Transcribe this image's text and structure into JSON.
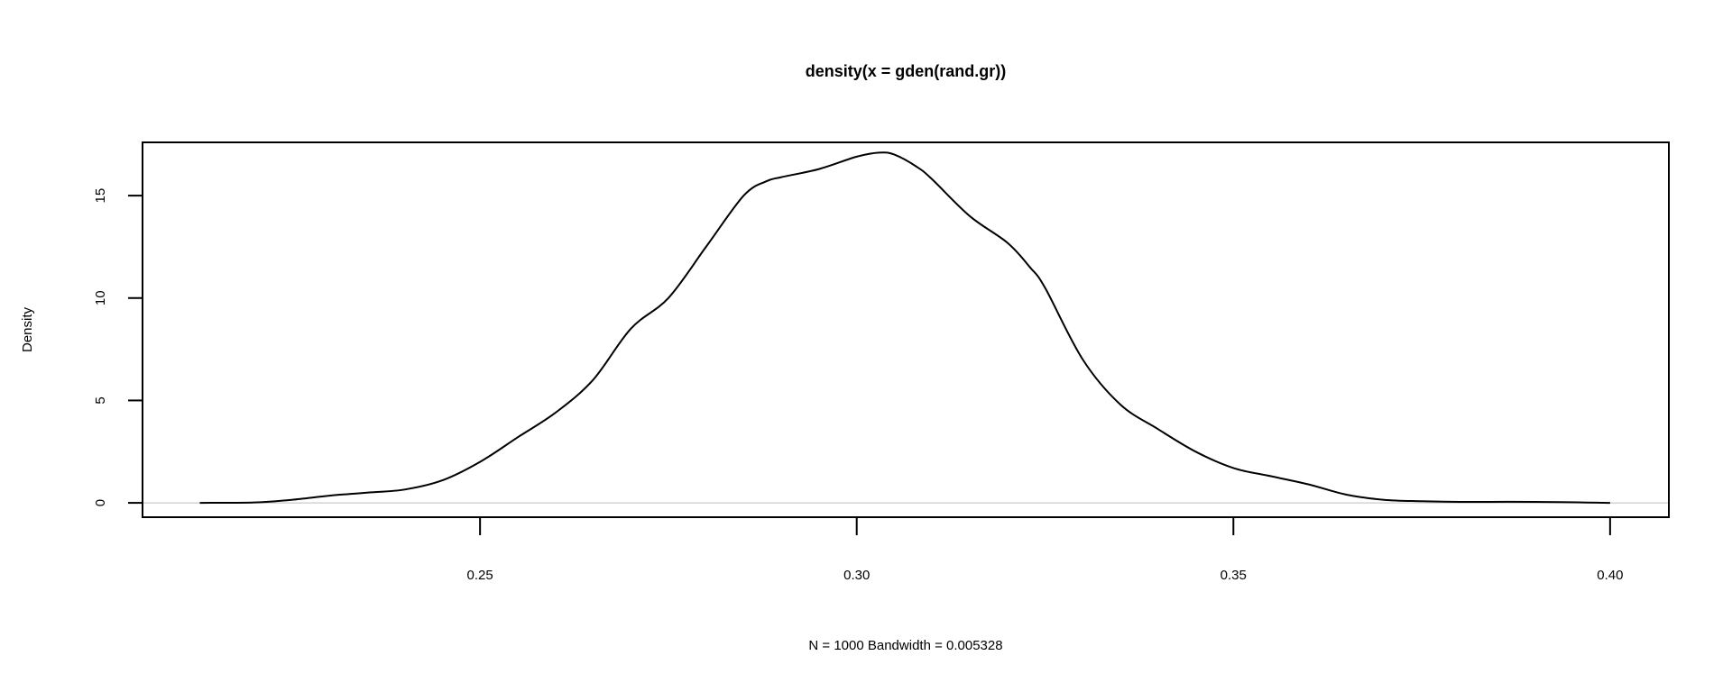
{
  "chart_data": {
    "type": "line",
    "title": "density(x = gden(rand.gr))",
    "xlabel": "N = 1000   Bandwidth = 0.005328",
    "ylabel": "Density",
    "xlim": [
      0.2052,
      0.4078
    ],
    "ylim": [
      -0.7,
      17.6
    ],
    "x_ticks": [
      0.25,
      0.3,
      0.35,
      0.4
    ],
    "x_tick_labels": [
      "0.25",
      "0.30",
      "0.35",
      "0.40"
    ],
    "y_ticks": [
      0,
      5,
      10,
      15
    ],
    "y_tick_labels": [
      "0",
      "5",
      "10",
      "15"
    ],
    "grid": false,
    "zero_line": true,
    "colors": {
      "line": "#000000",
      "zero_line": "#bebebe",
      "frame": "#000000"
    },
    "series": [
      {
        "x": [
          0.2128,
          0.22,
          0.225,
          0.23,
          0.235,
          0.24,
          0.245,
          0.25,
          0.255,
          0.26,
          0.265,
          0.27,
          0.275,
          0.28,
          0.285,
          0.288,
          0.29,
          0.295,
          0.3,
          0.303,
          0.305,
          0.308,
          0.31,
          0.315,
          0.32,
          0.323,
          0.325,
          0.33,
          0.335,
          0.34,
          0.345,
          0.35,
          0.355,
          0.36,
          0.365,
          0.37,
          0.375,
          0.38,
          0.39,
          0.4
        ],
        "y": [
          0.0,
          0.02,
          0.15,
          0.35,
          0.5,
          0.65,
          1.1,
          2.0,
          3.2,
          4.4,
          6.0,
          8.5,
          10.0,
          12.5,
          15.0,
          15.7,
          15.9,
          16.3,
          16.9,
          17.1,
          17.0,
          16.4,
          15.8,
          14.0,
          12.7,
          11.5,
          10.5,
          7.0,
          4.8,
          3.6,
          2.5,
          1.7,
          1.3,
          0.9,
          0.4,
          0.15,
          0.08,
          0.05,
          0.05,
          0.0
        ]
      }
    ]
  }
}
